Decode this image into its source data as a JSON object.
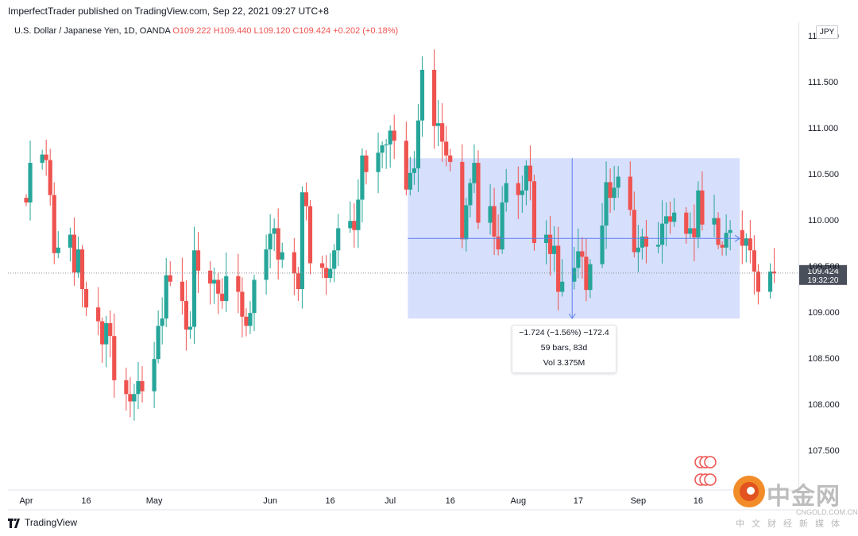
{
  "publisher_line": "ImperfectTrader published on TradingView.com, Sep 22, 2021 09:27 UTC+8",
  "legend": {
    "symbol": "U.S. Dollar / Japanese Yen, 1D, OANDA",
    "open": "O109.222",
    "high": "H109.440",
    "low": "L109.120",
    "close": "C109.424",
    "change": "+0.202 (+0.18%)"
  },
  "currency": "JPY",
  "last_price": {
    "value": "109.424",
    "countdown": "19:32:20"
  },
  "measure": {
    "line1": "−1.724 (−1.56%) −172.4",
    "line2": "59 bars, 83d",
    "line3": "Vol 3.375M"
  },
  "branding": "TradingView",
  "watermark": {
    "chinese": "中金网",
    "url": "CNGOLD.COM.CN",
    "tagline": "中文财经新媒体"
  },
  "colors": {
    "up": "#26a69a",
    "down": "#ef5350",
    "range_fill": "#d1dcfc",
    "range_line": "#5b7ff0"
  },
  "chart_data": {
    "type": "candlestick",
    "title": "U.S. Dollar / Japanese Yen, 1D, OANDA",
    "y_ticks": [
      107.5,
      108.0,
      108.5,
      109.0,
      109.5,
      110.0,
      110.5,
      111.0,
      111.5,
      112.0
    ],
    "y_tick_labels": [
      "107.500",
      "108.000",
      "108.500",
      "109.000",
      "109.500",
      "110.000",
      "110.500",
      "111.000",
      "111.500",
      "112.000"
    ],
    "ylim": [
      107.2,
      112.1
    ],
    "x_labels": [
      "Apr",
      "16",
      "May",
      "Jun",
      "16",
      "Jul",
      "16",
      "Aug",
      "17",
      "Sep",
      "16"
    ],
    "x_label_dates": [
      "2021-04-01",
      "2021-04-16",
      "2021-05-03",
      "2021-06-01",
      "2021-06-16",
      "2021-07-01",
      "2021-07-16",
      "2021-08-02",
      "2021-08-17",
      "2021-09-01",
      "2021-09-16"
    ],
    "grid": false,
    "measure_range": {
      "from": "2021-07-06",
      "to": "2021-09-21",
      "high": 110.67,
      "low": 108.93,
      "mid": 109.8
    },
    "closes": [
      110.19,
      110.62,
      110.71,
      110.65,
      110.27,
      109.64,
      109.7,
      109.84,
      109.43,
      109.68,
      109.25,
      109.05,
      108.9,
      108.65,
      108.88,
      108.74,
      108.26,
      108.11,
      108.03,
      108.11,
      108.25,
      108.14,
      108.49,
      108.85,
      108.93,
      109.4,
      109.33,
      109.12,
      108.81,
      108.84,
      109.67,
      109.45,
      109.31,
      109.35,
      109.2,
      109.12,
      109.39,
      109.22,
      108.95,
      108.85,
      108.99,
      109.35,
      109.68,
      109.85,
      109.91,
      109.57,
      109.65,
      109.42,
      109.25,
      110.3,
      110.15,
      109.53,
      109.48,
      109.37,
      109.47,
      109.67,
      109.91,
      109.99,
      109.89,
      110.22,
      110.7,
      110.52,
      110.73,
      110.81,
      110.82,
      110.97,
      110.86,
      110.33,
      110.51,
      110.56,
      111.08,
      111.63,
      111.02,
      111.05,
      110.85,
      110.7,
      110.63,
      109.79,
      110.16,
      110.4,
      110.62,
      109.97,
      110.15,
      109.82,
      109.68,
      110.19,
      110.4,
      110.27,
      110.32,
      110.59,
      110.42,
      109.75,
      109.84,
      109.63,
      109.72,
      109.22,
      109.33,
      109.48,
      109.66,
      109.6,
      109.24,
      109.52,
      109.94,
      110.41,
      110.24,
      110.35,
      110.47,
      110.11,
      109.65,
      109.7,
      109.82,
      109.71,
      109.73,
      109.96,
      110.04,
      109.98,
      110.08,
      109.85,
      109.91,
      109.81,
      110.32,
      109.95,
      110.02,
      109.73,
      109.7,
      109.86,
      109.89,
      109.72,
      109.8,
      109.67,
      109.44,
      109.22,
      109.44,
      109.42
    ]
  }
}
